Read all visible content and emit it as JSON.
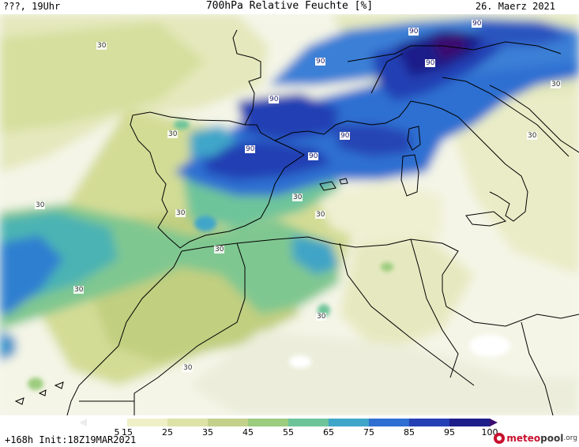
{
  "header": {
    "valid_time": "???, 19Uhr",
    "title": "700hPa Relative Feuchte [%]",
    "date": "26. Maerz 2021"
  },
  "map": {
    "contour_labels": [
      {
        "text": "30",
        "level": 30
      },
      {
        "text": "30",
        "level": 30
      },
      {
        "text": "30",
        "level": 30
      },
      {
        "text": "30",
        "level": 30
      },
      {
        "text": "30",
        "level": 30
      },
      {
        "text": "30",
        "level": 30
      },
      {
        "text": "30",
        "level": 30
      },
      {
        "text": "30",
        "level": 30
      },
      {
        "text": "30",
        "level": 30
      },
      {
        "text": "30",
        "level": 30
      },
      {
        "text": "30",
        "level": 30
      },
      {
        "text": "30",
        "level": 30
      },
      {
        "text": "90",
        "level": 90
      },
      {
        "text": "90",
        "level": 90
      },
      {
        "text": "90",
        "level": 90
      },
      {
        "text": "90",
        "level": 90
      },
      {
        "text": "90",
        "level": 90
      },
      {
        "text": "90",
        "level": 90
      },
      {
        "text": "90",
        "level": 90
      },
      {
        "text": "90",
        "level": 90
      }
    ]
  },
  "legend": {
    "ticks": [
      "5",
      "15",
      "25",
      "35",
      "45",
      "55",
      "65",
      "75",
      "85",
      "95",
      "100"
    ],
    "colors": [
      "#ffffff",
      "#f0f0c8",
      "#dde3a6",
      "#c3d18a",
      "#9ccc7e",
      "#6ec49a",
      "#3fa6c9",
      "#2f6fd1",
      "#2440b4",
      "#1e1e8a",
      "#3a0b70"
    ]
  },
  "footer": {
    "init_text": "+168h  Init:18Z19MAR2021",
    "brand_meteo": "meteo",
    "brand_pool": "pool",
    "brand_org": ".org"
  }
}
